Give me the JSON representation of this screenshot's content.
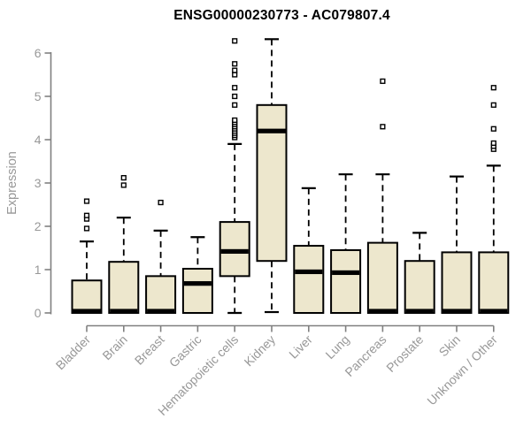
{
  "title": "ENSG00000230773 - AC079807.4",
  "chart_data": {
    "type": "boxplot",
    "title": "ENSG00000230773 - AC079807.4",
    "xlabel": "",
    "ylabel": "Expression",
    "ylim": [
      0,
      6.4
    ],
    "yticks": [
      0,
      1,
      2,
      3,
      4,
      5,
      6
    ],
    "grid": false,
    "legend": "none",
    "categories": [
      "Bladder",
      "Brain",
      "Breast",
      "Gastric",
      "Hematopoietic cells",
      "Kidney",
      "Liver",
      "Lung",
      "Pancreas",
      "Prostate",
      "Skin",
      "Unknown / Other"
    ],
    "boxes": [
      {
        "category": "Bladder",
        "min": 0,
        "q1": 0,
        "median": 0.04,
        "q3": 0.75,
        "max": 1.65,
        "outliers": [
          1.95,
          2.17,
          2.25,
          2.58
        ]
      },
      {
        "category": "Brain",
        "min": 0,
        "q1": 0,
        "median": 0.04,
        "q3": 1.18,
        "max": 2.2,
        "outliers": [
          2.95,
          3.12
        ]
      },
      {
        "category": "Breast",
        "min": 0,
        "q1": 0,
        "median": 0.04,
        "q3": 0.85,
        "max": 1.9,
        "outliers": [
          2.55
        ]
      },
      {
        "category": "Gastric",
        "min": 0,
        "q1": 0,
        "median": 0.68,
        "q3": 1.02,
        "max": 1.75,
        "outliers": []
      },
      {
        "category": "Hematopoietic cells",
        "min": 0,
        "q1": 0.85,
        "median": 1.42,
        "q3": 2.1,
        "max": 3.9,
        "outliers": [
          4.05,
          4.1,
          4.15,
          4.2,
          4.25,
          4.3,
          4.35,
          4.4,
          4.45,
          4.8,
          5.0,
          5.2,
          5.5,
          5.6,
          5.75,
          6.28
        ]
      },
      {
        "category": "Kidney",
        "min": 0.02,
        "q1": 1.2,
        "median": 4.2,
        "q3": 4.8,
        "max": 6.32,
        "outliers": []
      },
      {
        "category": "Liver",
        "min": 0,
        "q1": 0,
        "median": 0.95,
        "q3": 1.55,
        "max": 2.88,
        "outliers": []
      },
      {
        "category": "Lung",
        "min": 0,
        "q1": 0,
        "median": 0.93,
        "q3": 1.45,
        "max": 3.2,
        "outliers": []
      },
      {
        "category": "Pancreas",
        "min": 0,
        "q1": 0,
        "median": 0.04,
        "q3": 1.62,
        "max": 3.2,
        "outliers": [
          4.3,
          5.35
        ]
      },
      {
        "category": "Prostate",
        "min": 0,
        "q1": 0,
        "median": 0.04,
        "q3": 1.2,
        "max": 1.85,
        "outliers": []
      },
      {
        "category": "Skin",
        "min": 0,
        "q1": 0,
        "median": 0.04,
        "q3": 1.4,
        "max": 3.15,
        "outliers": []
      },
      {
        "category": "Unknown / Other",
        "min": 0,
        "q1": 0,
        "median": 0.04,
        "q3": 1.4,
        "max": 3.4,
        "outliers": [
          3.78,
          3.85,
          3.92,
          4.25,
          4.8,
          5.2
        ]
      }
    ],
    "colors": {
      "box_fill": "#EDE7CD",
      "box_stroke": "#000000",
      "median": "#000000",
      "whisker": "#000000",
      "outlier_stroke": "#000000",
      "axis_line": "#808080",
      "tick_label": "#989898",
      "title_text": "#000000",
      "background": "#ffffff"
    }
  }
}
